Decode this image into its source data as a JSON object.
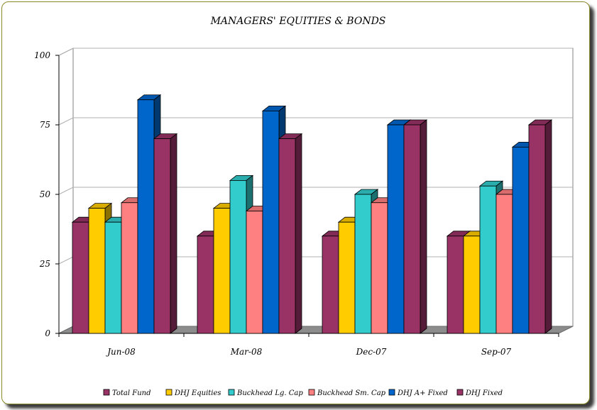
{
  "chart_data": {
    "type": "bar",
    "title": "MANAGERS' EQUITIES & BONDS",
    "xlabel": "",
    "ylabel": "",
    "categories": [
      "Jun-08",
      "Mar-08",
      "Dec-07",
      "Sep-07"
    ],
    "ylim": [
      0,
      100
    ],
    "yticks": [
      "0",
      "25",
      "50",
      "75",
      "100"
    ],
    "grid": true,
    "legend_position": "bottom",
    "series": [
      {
        "name": "Total Fund",
        "color": "#993366",
        "values": [
          40,
          35,
          35,
          35
        ]
      },
      {
        "name": "DHJ Equities",
        "color": "#FFCC00",
        "values": [
          45,
          45,
          40,
          35
        ]
      },
      {
        "name": "Buckhead Lg. Cap",
        "color": "#33CCCC",
        "values": [
          40,
          55,
          50,
          53
        ]
      },
      {
        "name": "Buckhead Sm. Cap",
        "color": "#FF8080",
        "values": [
          47,
          44,
          47,
          50
        ]
      },
      {
        "name": "DHJ A+ Fixed",
        "color": "#0066CC",
        "values": [
          84,
          80,
          75,
          67
        ]
      },
      {
        "name": "DHJ Fixed",
        "color": "#993366",
        "values": [
          70,
          70,
          75,
          75
        ]
      }
    ]
  }
}
